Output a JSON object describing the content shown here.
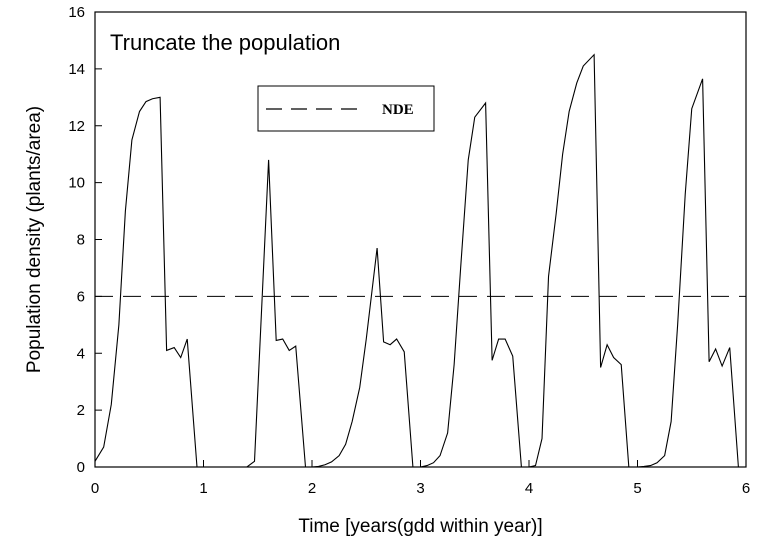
{
  "chart_data": {
    "type": "line",
    "title": "Truncate the population",
    "xlabel": "Time [years(gdd within year)]",
    "ylabel": "Population density (plants/area)",
    "xlim": [
      0,
      6
    ],
    "ylim": [
      0,
      16
    ],
    "xticks": [
      0,
      1,
      2,
      3,
      4,
      5,
      6
    ],
    "yticks": [
      0,
      2,
      4,
      6,
      8,
      10,
      12,
      14,
      16
    ],
    "grid": false,
    "legend": {
      "position": "top-center",
      "entries": [
        {
          "label": "NDE",
          "style": "dashed"
        }
      ]
    },
    "series": [
      {
        "name": "",
        "style": "solid",
        "color": "#000000",
        "points": [
          [
            0.0,
            0.2
          ],
          [
            0.08,
            0.7
          ],
          [
            0.15,
            2.2
          ],
          [
            0.22,
            5.0
          ],
          [
            0.28,
            9.0
          ],
          [
            0.34,
            11.5
          ],
          [
            0.41,
            12.5
          ],
          [
            0.47,
            12.85
          ],
          [
            0.53,
            12.95
          ],
          [
            0.6,
            13.0
          ],
          [
            0.66,
            4.1
          ],
          [
            0.73,
            4.2
          ],
          [
            0.79,
            3.85
          ],
          [
            0.85,
            4.5
          ],
          [
            0.94,
            0.0
          ],
          [
            1.0,
            0.0
          ],
          [
            1.1,
            0.0
          ],
          [
            1.2,
            0.0
          ],
          [
            1.3,
            0.0
          ],
          [
            1.4,
            0.0
          ],
          [
            1.47,
            0.2
          ],
          [
            1.6,
            10.8
          ],
          [
            1.67,
            4.45
          ],
          [
            1.73,
            4.5
          ],
          [
            1.79,
            4.1
          ],
          [
            1.85,
            4.25
          ],
          [
            1.94,
            0.0
          ],
          [
            2.0,
            0.0
          ],
          [
            2.06,
            0.02
          ],
          [
            2.12,
            0.08
          ],
          [
            2.18,
            0.18
          ],
          [
            2.25,
            0.4
          ],
          [
            2.31,
            0.8
          ],
          [
            2.37,
            1.6
          ],
          [
            2.44,
            2.8
          ],
          [
            2.5,
            4.5
          ],
          [
            2.6,
            7.7
          ],
          [
            2.66,
            4.4
          ],
          [
            2.72,
            4.3
          ],
          [
            2.78,
            4.5
          ],
          [
            2.85,
            4.05
          ],
          [
            2.93,
            0.0
          ],
          [
            3.0,
            0.0
          ],
          [
            3.06,
            0.05
          ],
          [
            3.12,
            0.15
          ],
          [
            3.18,
            0.4
          ],
          [
            3.25,
            1.2
          ],
          [
            3.31,
            3.6
          ],
          [
            3.37,
            7.0
          ],
          [
            3.44,
            10.8
          ],
          [
            3.5,
            12.3
          ],
          [
            3.6,
            12.8
          ],
          [
            3.66,
            3.75
          ],
          [
            3.72,
            4.5
          ],
          [
            3.78,
            4.5
          ],
          [
            3.85,
            3.9
          ],
          [
            3.93,
            0.0
          ],
          [
            4.0,
            0.0
          ],
          [
            4.06,
            0.05
          ],
          [
            4.12,
            1.0
          ],
          [
            4.18,
            6.7
          ],
          [
            4.25,
            8.9
          ],
          [
            4.31,
            11.0
          ],
          [
            4.37,
            12.5
          ],
          [
            4.44,
            13.5
          ],
          [
            4.5,
            14.1
          ],
          [
            4.6,
            14.5
          ],
          [
            4.66,
            3.5
          ],
          [
            4.72,
            4.3
          ],
          [
            4.78,
            3.85
          ],
          [
            4.85,
            3.6
          ],
          [
            4.92,
            0.0
          ],
          [
            5.0,
            0.0
          ],
          [
            5.06,
            0.02
          ],
          [
            5.12,
            0.05
          ],
          [
            5.18,
            0.15
          ],
          [
            5.25,
            0.4
          ],
          [
            5.31,
            1.6
          ],
          [
            5.37,
            5.0
          ],
          [
            5.44,
            9.6
          ],
          [
            5.5,
            12.6
          ],
          [
            5.6,
            13.65
          ],
          [
            5.66,
            3.7
          ],
          [
            5.72,
            4.15
          ],
          [
            5.78,
            3.55
          ],
          [
            5.85,
            4.2
          ],
          [
            5.93,
            0.0
          ]
        ]
      },
      {
        "name": "NDE",
        "style": "dashed",
        "color": "#000000",
        "points": [
          [
            0,
            6
          ],
          [
            6,
            6
          ]
        ]
      }
    ]
  }
}
